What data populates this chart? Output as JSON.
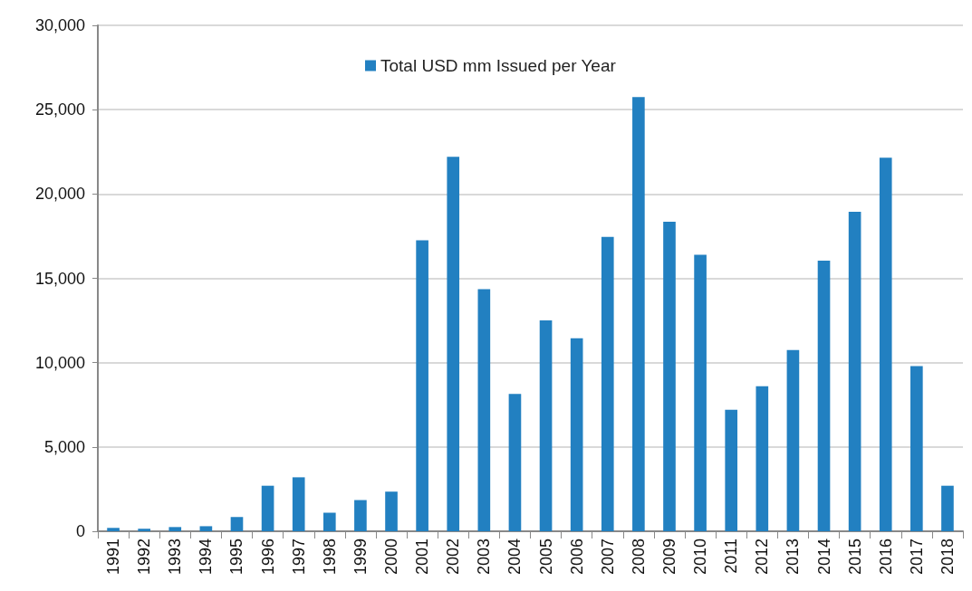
{
  "chart_data": {
    "type": "bar",
    "categories": [
      "1991",
      "1992",
      "1993",
      "1994",
      "1995",
      "1996",
      "1997",
      "1998",
      "1999",
      "2000",
      "2001",
      "2002",
      "2003",
      "2004",
      "2005",
      "2006",
      "2007",
      "2008",
      "2009",
      "2010",
      "2011",
      "2012",
      "2013",
      "2014",
      "2015",
      "2016",
      "2017",
      "2018"
    ],
    "series": [
      {
        "name": "Total USD mm Issued per Year",
        "color": "#2280c1",
        "values": [
          200,
          150,
          250,
          300,
          850,
          2700,
          3200,
          1100,
          1850,
          2350,
          17250,
          22200,
          14350,
          8150,
          12500,
          11450,
          17450,
          25750,
          18350,
          16400,
          7200,
          8600,
          10750,
          16050,
          18950,
          22150,
          9800,
          2700
        ]
      }
    ],
    "ylim": [
      0,
      30000
    ],
    "yticks": [
      0,
      {
        "value": 5000,
        "label": "5,000"
      },
      {
        "value": 10000,
        "label": "10,000"
      },
      {
        "value": 15000,
        "label": "15,000"
      },
      {
        "value": 20000,
        "label": "20,000"
      },
      {
        "value": 25000,
        "label": "25,000"
      },
      {
        "value": 30000,
        "label": "30,000"
      }
    ],
    "grid": "y",
    "legend": "top"
  }
}
